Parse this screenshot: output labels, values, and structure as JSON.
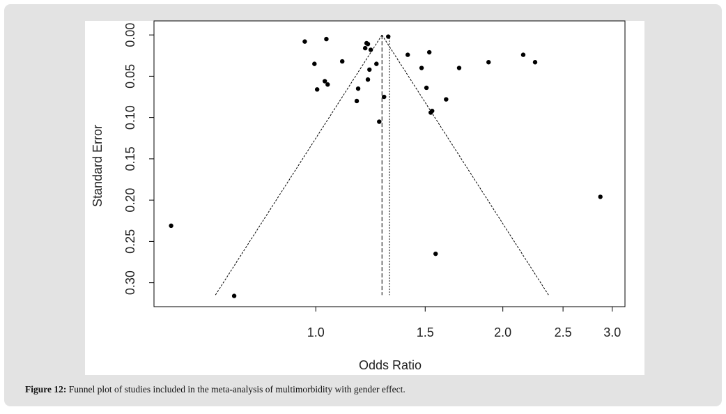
{
  "chart_data": {
    "type": "scatter",
    "xlabel": "Odds Ratio",
    "ylabel": "Standard Error",
    "xlog": true,
    "y_reversed": true,
    "color": "#000000",
    "xlim": [
      0.549,
      3.145
    ],
    "ylim": [
      -0.017,
      0.329
    ],
    "xticks": [
      {
        "value": 1,
        "label": "1.0"
      },
      1.5,
      {
        "value": 2,
        "label": "2.0"
      },
      2.5,
      {
        "value": 3,
        "label": "3.0"
      }
    ],
    "yticks": [
      {
        "value": 0,
        "label": "0.00"
      },
      {
        "value": 0.05,
        "label": "0.05"
      },
      {
        "value": 0.1,
        "label": "0.10"
      },
      {
        "value": 0.15,
        "label": "0.15"
      },
      {
        "value": 0.2,
        "label": "0.20"
      },
      {
        "value": 0.25,
        "label": "0.25"
      },
      {
        "value": 0.3,
        "label": "0.30"
      }
    ],
    "x": [
      0.96,
      1.04,
      0.995,
      1.005,
      1.034,
      1.045,
      1.103,
      1.207,
      1.201,
      1.213,
      1.226,
      1.252,
      1.22,
      1.213,
      1.17,
      1.164,
      1.288,
      1.265,
      1.308,
      1.406,
      1.523,
      1.48,
      1.507,
      1.531,
      1.539,
      1.621,
      1.701,
      1.897,
      2.157,
      2.254,
      2.871,
      0.585,
      0.739,
      1.559
    ],
    "values": [
      0.008,
      0.005,
      0.035,
      0.066,
      0.056,
      0.06,
      0.032,
      0.01,
      0.016,
      0.011,
      0.018,
      0.035,
      0.042,
      0.054,
      0.065,
      0.08,
      0.075,
      0.105,
      0.002,
      0.024,
      0.021,
      0.04,
      0.064,
      0.094,
      0.092,
      0.078,
      0.04,
      0.033,
      0.024,
      0.033,
      0.196,
      0.231,
      0.316,
      0.265
    ],
    "funnel": {
      "center": 1.278,
      "se_max": 0.315,
      "z": 1.96
    },
    "reference": 1.314
  },
  "caption": {
    "label": "Figure 12:",
    "text": "Funnel plot of studies included in the meta-analysis of multimorbidity with gender effect."
  }
}
